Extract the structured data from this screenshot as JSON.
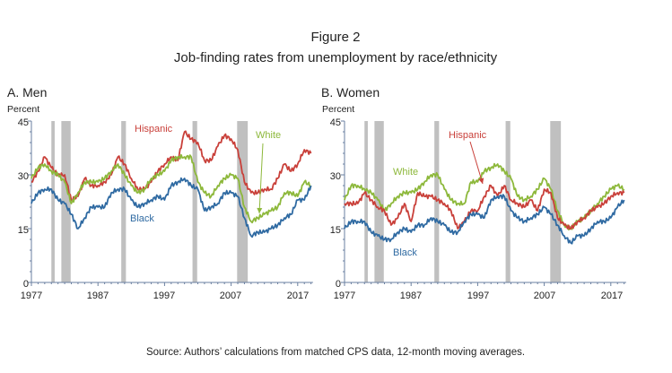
{
  "figure_label": "Figure 2",
  "title": "Job-finding rates from unemployment by race/ethnicity",
  "source": "Source: Authors’ calculations from matched CPS data, 12-month moving averages.",
  "colors": {
    "Hispanic": "#c9403a",
    "White": "#8db83b",
    "Black": "#2f6aa2",
    "recession": "#c0c0c0"
  },
  "chart_data": [
    {
      "type": "line",
      "title": "A. Men",
      "ylabel": "Percent",
      "ylim": [
        0,
        45
      ],
      "yticks": [
        "0",
        "15",
        "30",
        "45"
      ],
      "xlim": [
        1977,
        2019.3
      ],
      "xticks": [
        "1977",
        "1987",
        "1997",
        "2007",
        "2017"
      ],
      "recessions": [
        [
          1980.0,
          1980.5
        ],
        [
          1981.5,
          1982.9
        ],
        [
          1990.5,
          1991.2
        ],
        [
          2001.2,
          2001.9
        ],
        [
          2007.9,
          2009.5
        ]
      ],
      "x": [
        1977,
        1978,
        1979,
        1980,
        1981,
        1982,
        1983,
        1984,
        1985,
        1986,
        1987,
        1988,
        1989,
        1990,
        1991,
        1992,
        1993,
        1994,
        1995,
        1996,
        1997,
        1998,
        1999,
        2000,
        2001,
        2002,
        2003,
        2004,
        2005,
        2006,
        2007,
        2008,
        2009,
        2010,
        2011,
        2012,
        2013,
        2014,
        2015,
        2016,
        2017,
        2018,
        2019
      ],
      "series": [
        {
          "name": "Hispanic",
          "values": [
            28,
            31,
            35,
            32,
            30,
            30,
            23,
            24,
            29,
            27,
            27,
            28,
            30,
            35,
            33,
            29,
            26,
            26,
            28,
            31,
            33,
            35,
            34,
            42,
            40,
            39,
            34,
            34,
            38,
            41,
            40,
            37,
            28,
            25,
            25,
            26,
            26,
            29,
            33,
            31,
            33,
            37,
            36
          ]
        },
        {
          "name": "White",
          "values": [
            29,
            32,
            33,
            31,
            30,
            28,
            22,
            25,
            28,
            28,
            28,
            29,
            31,
            33,
            30,
            27,
            25,
            26,
            29,
            30,
            31,
            34,
            35,
            35,
            35,
            28,
            25,
            24,
            27,
            29,
            30,
            29,
            21,
            17,
            18,
            19,
            20,
            21,
            25,
            25,
            24,
            28,
            27
          ]
        },
        {
          "name": "Black",
          "values": [
            22,
            25,
            26,
            26,
            23,
            22,
            19,
            15,
            18,
            21,
            21,
            21,
            25,
            26,
            26,
            23,
            21,
            22,
            23,
            24,
            23,
            27,
            28,
            29,
            27,
            26,
            20,
            21,
            22,
            25,
            25,
            24,
            18,
            13,
            14,
            14,
            15,
            16,
            18,
            19,
            23,
            23,
            27
          ]
        }
      ]
    },
    {
      "type": "line",
      "title": "B. Women",
      "ylabel": "Percent",
      "ylim": [
        0,
        45
      ],
      "yticks": [
        "0",
        "15",
        "30",
        "45"
      ],
      "xlim": [
        1977,
        2019.3
      ],
      "xticks": [
        "1977",
        "1987",
        "1997",
        "2007",
        "2017"
      ],
      "recessions": [
        [
          1980.0,
          1980.5
        ],
        [
          1981.5,
          1982.9
        ],
        [
          1990.5,
          1991.2
        ],
        [
          2001.2,
          2001.9
        ],
        [
          2007.9,
          2009.5
        ]
      ],
      "x": [
        1977,
        1978,
        1979,
        1980,
        1981,
        1982,
        1983,
        1984,
        1985,
        1986,
        1987,
        1988,
        1989,
        1990,
        1991,
        1992,
        1993,
        1994,
        1995,
        1996,
        1997,
        1998,
        1999,
        2000,
        2001,
        2002,
        2003,
        2004,
        2005,
        2006,
        2007,
        2008,
        2009,
        2010,
        2011,
        2012,
        2013,
        2014,
        2015,
        2016,
        2017,
        2018,
        2019
      ],
      "series": [
        {
          "name": "White",
          "values": [
            23,
            27,
            27,
            26,
            25,
            23,
            20,
            22,
            24,
            25,
            25,
            26,
            28,
            30,
            30,
            26,
            23,
            22,
            22,
            28,
            28,
            31,
            32,
            33,
            31,
            29,
            24,
            23,
            24,
            26,
            29,
            26,
            20,
            16,
            15,
            17,
            18,
            20,
            22,
            24,
            26,
            27,
            26
          ]
        },
        {
          "name": "Hispanic",
          "values": [
            22,
            22,
            22,
            25,
            23,
            21,
            20,
            16,
            18,
            22,
            17,
            25,
            24,
            24,
            23,
            22,
            20,
            15,
            17,
            20,
            20,
            24,
            27,
            24,
            27,
            23,
            22,
            21,
            23,
            20,
            26,
            25,
            18,
            16,
            15,
            17,
            18,
            20,
            21,
            22,
            24,
            25,
            25
          ]
        },
        {
          "name": "Black",
          "values": [
            15,
            17,
            17,
            17,
            14,
            13,
            12,
            12,
            14,
            15,
            14,
            16,
            16,
            18,
            17,
            16,
            14,
            14,
            17,
            19,
            19,
            18,
            23,
            24,
            24,
            20,
            18,
            17,
            18,
            19,
            21,
            19,
            16,
            13,
            11,
            13,
            13,
            15,
            17,
            17,
            18,
            21,
            23
          ]
        }
      ]
    }
  ]
}
